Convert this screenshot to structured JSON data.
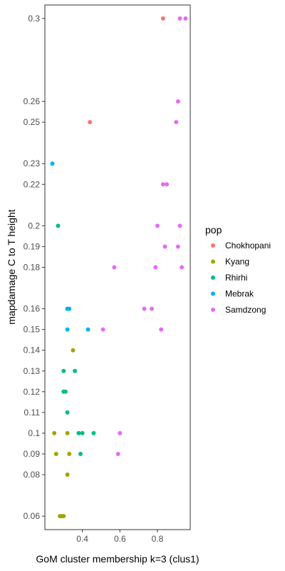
{
  "chart_data": {
    "type": "scatter",
    "xlabel": "GoM cluster membership k=3 (clus1)",
    "ylabel": "mapdamage C to T height",
    "xlim": [
      0.2,
      0.975
    ],
    "ylim": [
      0.0535,
      0.3065
    ],
    "x_ticks": [
      0.4,
      0.6,
      0.8
    ],
    "x_tick_labels": [
      "0.4",
      "0.6",
      "0.8"
    ],
    "y_ticks": [
      0.06,
      0.08,
      0.09,
      0.1,
      0.11,
      0.12,
      0.13,
      0.14,
      0.15,
      0.16,
      0.18,
      0.19,
      0.2,
      0.22,
      0.23,
      0.25,
      0.26,
      0.3
    ],
    "y_tick_labels": [
      "0.06",
      "0.08",
      "0.09",
      "0.1",
      "0.11",
      "0.12",
      "0.13",
      "0.14",
      "0.15",
      "0.16",
      "0.18",
      "0.19",
      "0.2",
      "0.22",
      "0.23",
      "0.25",
      "0.26",
      "0.3"
    ],
    "grid": false,
    "legend": {
      "title": "pop",
      "placement": "right"
    },
    "series": [
      {
        "name": "Chokhopani",
        "color": "#F8766D",
        "points": [
          [
            0.83,
            0.3
          ],
          [
            0.44,
            0.25
          ]
        ]
      },
      {
        "name": "Kyang",
        "color": "#A3A500",
        "points": [
          [
            0.35,
            0.14
          ],
          [
            0.25,
            0.1
          ],
          [
            0.32,
            0.1
          ],
          [
            0.26,
            0.09
          ],
          [
            0.33,
            0.09
          ],
          [
            0.32,
            0.08
          ],
          [
            0.28,
            0.06
          ],
          [
            0.29,
            0.06
          ],
          [
            0.3,
            0.06
          ]
        ]
      },
      {
        "name": "Rhirhi",
        "color": "#00BF7D",
        "points": [
          [
            0.27,
            0.2
          ],
          [
            0.3,
            0.13
          ],
          [
            0.36,
            0.13
          ],
          [
            0.3,
            0.12
          ],
          [
            0.31,
            0.12
          ],
          [
            0.32,
            0.11
          ],
          [
            0.38,
            0.1
          ],
          [
            0.4,
            0.1
          ],
          [
            0.46,
            0.1
          ],
          [
            0.39,
            0.09
          ]
        ]
      },
      {
        "name": "Mebrak",
        "color": "#00B0F6",
        "points": [
          [
            0.24,
            0.23
          ],
          [
            0.32,
            0.16
          ],
          [
            0.33,
            0.16
          ],
          [
            0.32,
            0.15
          ],
          [
            0.43,
            0.15
          ]
        ]
      },
      {
        "name": "Samdzong",
        "color": "#E76BF3",
        "points": [
          [
            0.92,
            0.3
          ],
          [
            0.95,
            0.3
          ],
          [
            0.91,
            0.26
          ],
          [
            0.9,
            0.25
          ],
          [
            0.83,
            0.22
          ],
          [
            0.85,
            0.22
          ],
          [
            0.8,
            0.2
          ],
          [
            0.92,
            0.2
          ],
          [
            0.84,
            0.19
          ],
          [
            0.91,
            0.19
          ],
          [
            0.57,
            0.18
          ],
          [
            0.79,
            0.18
          ],
          [
            0.93,
            0.18
          ],
          [
            0.73,
            0.16
          ],
          [
            0.77,
            0.16
          ],
          [
            0.51,
            0.15
          ],
          [
            0.82,
            0.15
          ],
          [
            0.6,
            0.1
          ],
          [
            0.59,
            0.09
          ]
        ]
      }
    ]
  }
}
